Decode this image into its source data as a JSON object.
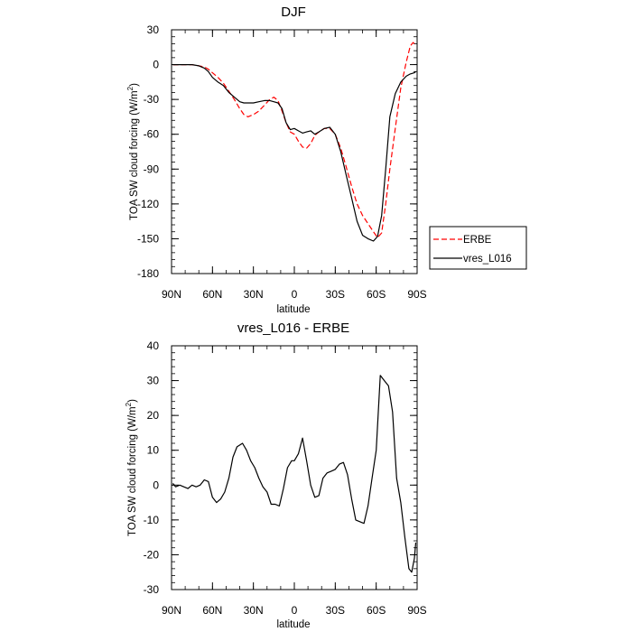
{
  "chart_data": [
    {
      "type": "line",
      "title": "DJF",
      "xlabel": "latitude",
      "ylabel": "TOA SW cloud forcing (W/m",
      "ylabel_sup": "2",
      "ylabel_close": ")",
      "xlim": [
        90,
        -90
      ],
      "ylim": [
        -180,
        30
      ],
      "xticks": [
        90,
        60,
        30,
        0,
        -30,
        -60,
        -90
      ],
      "xtick_labels": [
        "90N",
        "60N",
        "30N",
        "0",
        "30S",
        "60S",
        "90S"
      ],
      "yticks": [
        30,
        0,
        -30,
        -60,
        -90,
        -120,
        -150,
        -180
      ],
      "ytick_labels": [
        "30",
        "0",
        "-30",
        "-60",
        "-90",
        "-120",
        "-150",
        "-180"
      ],
      "grid": false,
      "legend_position": "outside-right",
      "series": [
        {
          "name": "ERBE",
          "color": "#ff0000",
          "dash": true,
          "x": [
            89,
            85,
            80,
            75,
            70,
            66,
            63,
            60,
            56,
            52,
            48,
            44,
            40,
            37,
            34,
            30,
            26,
            22,
            18,
            15,
            12,
            9,
            6,
            3,
            0,
            -3,
            -6,
            -9,
            -12,
            -15,
            -18,
            -22,
            -26,
            -30,
            -34,
            -38,
            -42,
            -46,
            -50,
            -54,
            -58,
            -61,
            -64,
            -67,
            -70,
            -74,
            -78,
            -82,
            -85,
            -87,
            -89
          ],
          "y": [
            0,
            0,
            0,
            0,
            -1,
            -2,
            -4,
            -7,
            -11,
            -16,
            -23,
            -30,
            -38,
            -43,
            -45,
            -43,
            -40,
            -35,
            -30,
            -28,
            -31,
            -40,
            -50,
            -58,
            -60,
            -66,
            -71,
            -72,
            -68,
            -61,
            -58,
            -55,
            -55,
            -60,
            -72,
            -88,
            -105,
            -120,
            -130,
            -137,
            -144,
            -149,
            -145,
            -120,
            -90,
            -55,
            -20,
            2,
            16,
            19,
            17
          ]
        },
        {
          "name": "vres_L016",
          "color": "#000000",
          "dash": false,
          "x": [
            89,
            85,
            80,
            75,
            70,
            66,
            63,
            60,
            56,
            52,
            48,
            44,
            40,
            37,
            34,
            30,
            26,
            22,
            18,
            15,
            12,
            9,
            6,
            3,
            0,
            -3,
            -6,
            -9,
            -12,
            -15,
            -18,
            -22,
            -26,
            -30,
            -34,
            -38,
            -42,
            -46,
            -50,
            -54,
            -58,
            -61,
            -64,
            -67,
            -70,
            -74,
            -78,
            -82,
            -85,
            -88,
            -89
          ],
          "y": [
            0,
            0,
            0,
            0,
            -1,
            -3,
            -6,
            -11,
            -15,
            -18,
            -24,
            -28,
            -32,
            -33,
            -33,
            -33,
            -32,
            -31,
            -31,
            -32,
            -33,
            -38,
            -50,
            -56,
            -55,
            -57,
            -59,
            -58,
            -57,
            -60,
            -58,
            -55,
            -54,
            -60,
            -75,
            -95,
            -115,
            -135,
            -147,
            -150,
            -152,
            -148,
            -130,
            -90,
            -45,
            -25,
            -15,
            -10,
            -8,
            -7,
            -6
          ]
        }
      ]
    },
    {
      "type": "line",
      "title": "vres_L016 - ERBE",
      "xlabel": "latitude",
      "ylabel": "TOA SW cloud forcing (W/m",
      "ylabel_sup": "2",
      "ylabel_close": ")",
      "xlim": [
        90,
        -90
      ],
      "ylim": [
        -30,
        40
      ],
      "xticks": [
        90,
        60,
        30,
        0,
        -30,
        -60,
        -90
      ],
      "xtick_labels": [
        "90N",
        "60N",
        "30N",
        "0",
        "30S",
        "60S",
        "90S"
      ],
      "yticks": [
        40,
        30,
        20,
        10,
        0,
        -10,
        -20,
        -30
      ],
      "ytick_labels": [
        "40",
        "30",
        "20",
        "10",
        "0",
        "-10",
        "-20",
        "-30"
      ],
      "grid": false,
      "series": [
        {
          "name": "vres_L016 - ERBE",
          "color": "#000000",
          "dash": false,
          "x": [
            89,
            87,
            84,
            81,
            78,
            75,
            72,
            69,
            66,
            63,
            60,
            57,
            54,
            51,
            48,
            45,
            42,
            38,
            35,
            32,
            29,
            26,
            23,
            20,
            17,
            14,
            11,
            8,
            5,
            2,
            0,
            -3,
            -6,
            -9,
            -12,
            -15,
            -18,
            -21,
            -24,
            -27,
            -30,
            -33,
            -36,
            -39,
            -42,
            -45,
            -48,
            -51,
            -54,
            -57,
            -60,
            -63,
            -66,
            -69,
            -72,
            -75,
            -78,
            -81,
            -84,
            -86,
            -88,
            -89
          ],
          "y": [
            0.5,
            -0.5,
            0,
            -0.5,
            -1,
            0,
            -0.5,
            0,
            1.5,
            1,
            -3.5,
            -5,
            -4,
            -2,
            2,
            8,
            11,
            12,
            10,
            7,
            5,
            2,
            -0.5,
            -2,
            -5.5,
            -5.5,
            -6,
            -1,
            5,
            7,
            7,
            9,
            13.5,
            7,
            0,
            -3.5,
            -3,
            2,
            3.5,
            4,
            4.5,
            6,
            6.5,
            3,
            -4,
            -10,
            -10.5,
            -11,
            -6,
            2,
            10,
            31.5,
            30,
            28.5,
            21,
            2,
            -5,
            -15,
            -24,
            -25,
            -21,
            -16.5
          ]
        }
      ]
    }
  ]
}
